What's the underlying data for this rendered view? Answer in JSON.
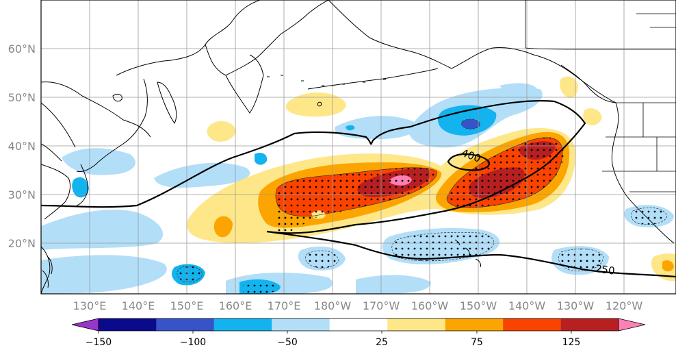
{
  "map": {
    "lat_labels": [
      "60°N",
      "50°N",
      "40°N",
      "30°N",
      "20°N"
    ],
    "lon_labels": [
      "130°E",
      "140°E",
      "150°E",
      "160°E",
      "170°E",
      "180°W",
      "170°W",
      "160°W",
      "150°W",
      "140°W",
      "130°W",
      "120°W"
    ],
    "contour_labels": [
      "400",
      "250"
    ]
  },
  "colorbar": {
    "tick_labels": [
      "−150",
      "−100",
      "−50",
      "25",
      "75",
      "125"
    ],
    "colors": [
      "#9a35cc",
      "#0a0a8c",
      "#3653c8",
      "#12b3ee",
      "#b2def8",
      "#ffffff",
      "#fee789",
      "#fca500",
      "#fa4300",
      "#b81f21",
      "#fb80b4"
    ]
  }
}
